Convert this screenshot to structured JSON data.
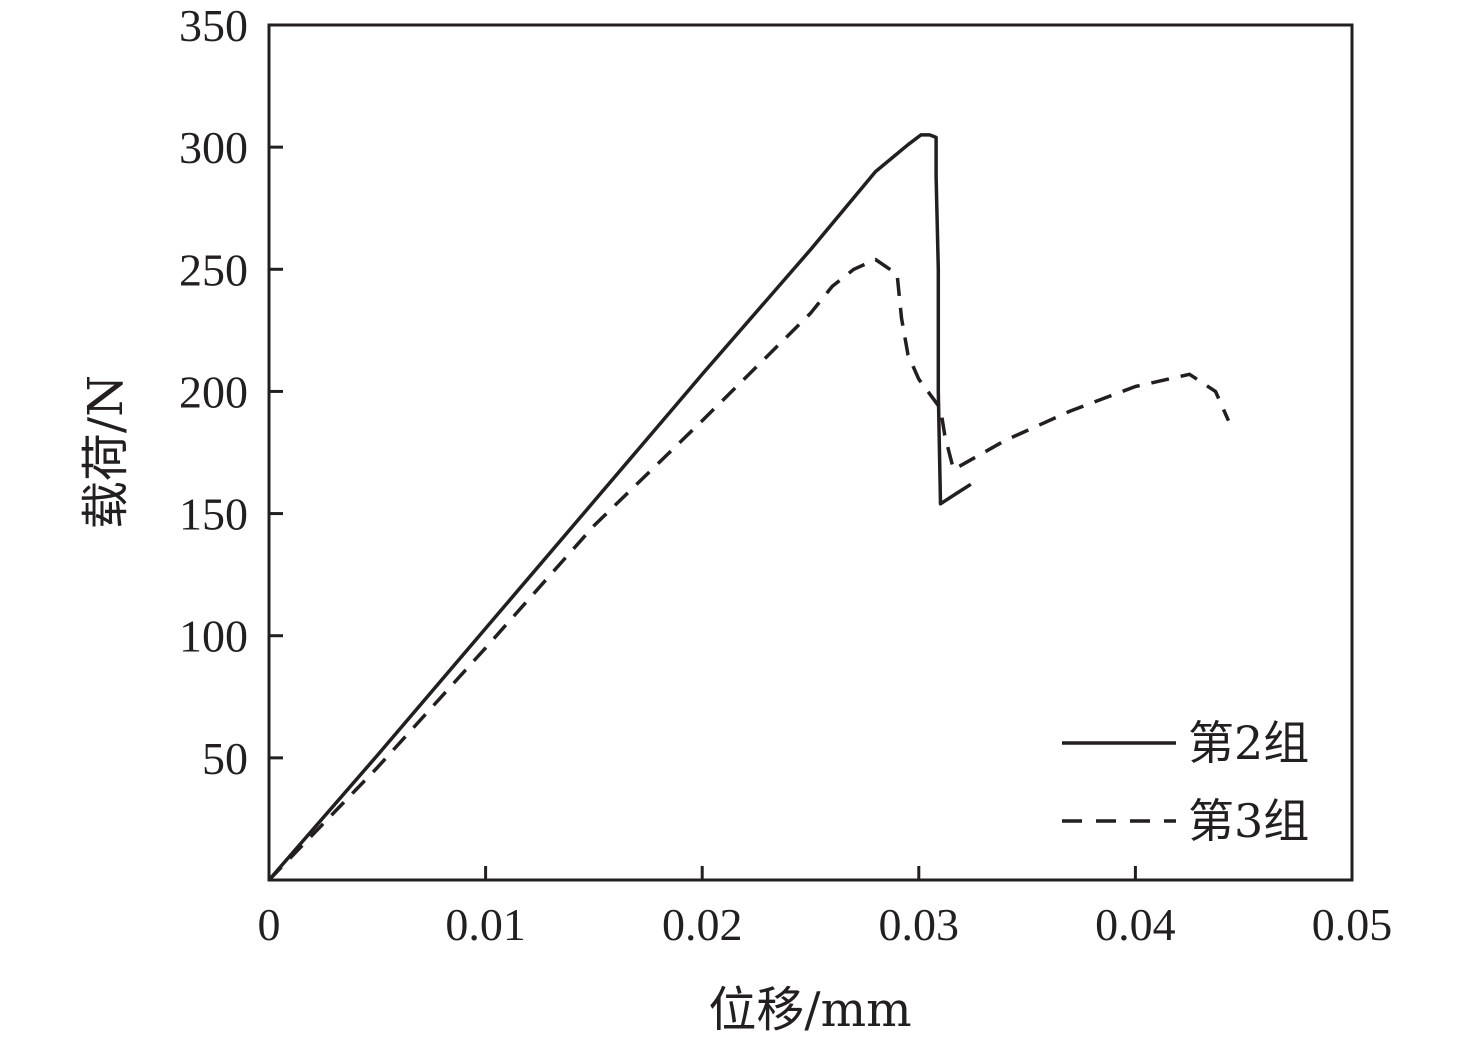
{
  "chart_data": {
    "type": "line",
    "xlabel": "位移/mm",
    "ylabel": "载荷/N",
    "xlim": [
      0,
      0.05
    ],
    "ylim": [
      0,
      350
    ],
    "x_ticks": [
      0,
      0.01,
      0.02,
      0.03,
      0.04,
      0.05
    ],
    "x_tick_labels": [
      "0",
      "0.01",
      "0.02",
      "0.03",
      "0.04",
      "0.05"
    ],
    "y_ticks": [
      50,
      100,
      150,
      200,
      250,
      300,
      350
    ],
    "y_tick_labels": [
      "50",
      "100",
      "150",
      "200",
      "250",
      "300",
      "350"
    ],
    "grid": false,
    "legend_position": "bottom-right",
    "series": [
      {
        "name": "第2组",
        "style": "solid",
        "color": "#231f20",
        "x": [
          0,
          0.005,
          0.01,
          0.015,
          0.02,
          0.025,
          0.028,
          0.0295,
          0.0301,
          0.0305,
          0.0308,
          0.0308,
          0.0309,
          0.0309,
          0.031,
          0.0317,
          0.0324
        ],
        "y": [
          0,
          51,
          103,
          155,
          207,
          258,
          290,
          301,
          305,
          305,
          304,
          288,
          250,
          200,
          154,
          158,
          162
        ]
      },
      {
        "name": "第3组",
        "style": "dashed",
        "color": "#231f20",
        "x": [
          0,
          0.005,
          0.01,
          0.015,
          0.02,
          0.025,
          0.026,
          0.027,
          0.028,
          0.029,
          0.0292,
          0.0295,
          0.03,
          0.031,
          0.0312,
          0.0316,
          0.034,
          0.037,
          0.04,
          0.0425,
          0.0437,
          0.0443
        ],
        "y": [
          0,
          46,
          95,
          145,
          188,
          232,
          243,
          250,
          254,
          248,
          230,
          215,
          205,
          193,
          182,
          168,
          180,
          192,
          202,
          207,
          200,
          188
        ]
      }
    ]
  }
}
